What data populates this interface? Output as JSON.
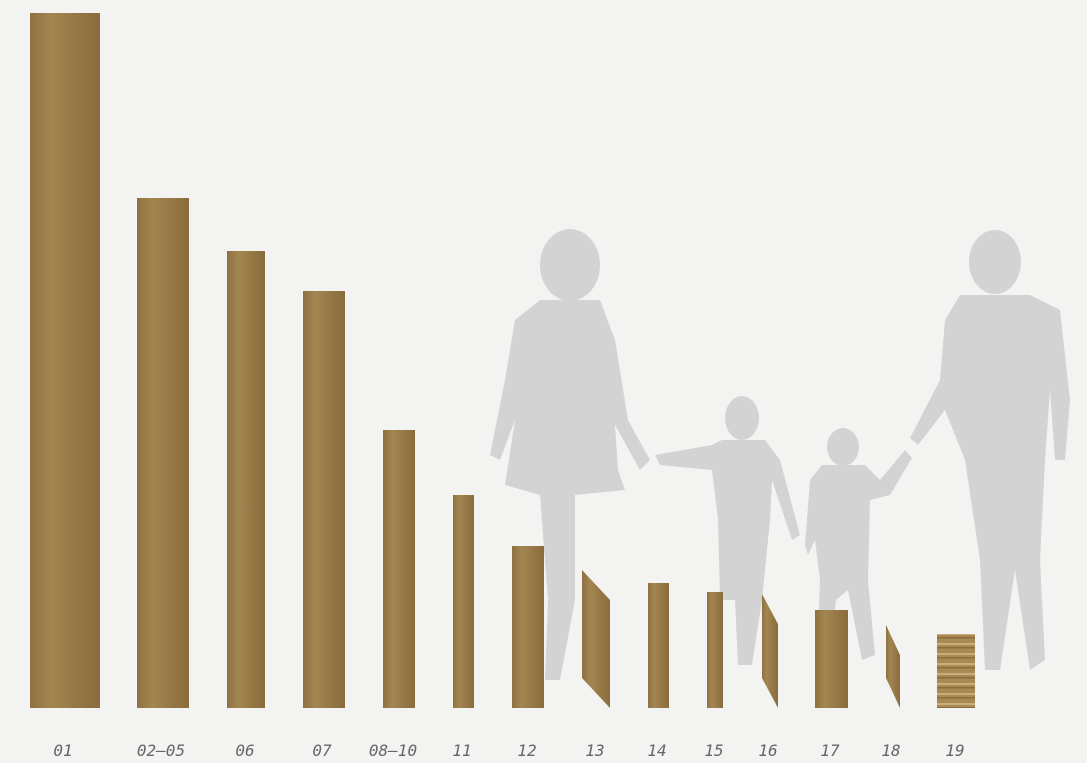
{
  "planks": {
    "labels": [
      "01",
      "02–05",
      "06",
      "07",
      "08–10",
      "11",
      "12",
      "13",
      "14",
      "15",
      "16",
      "17",
      "18",
      "19"
    ]
  }
}
